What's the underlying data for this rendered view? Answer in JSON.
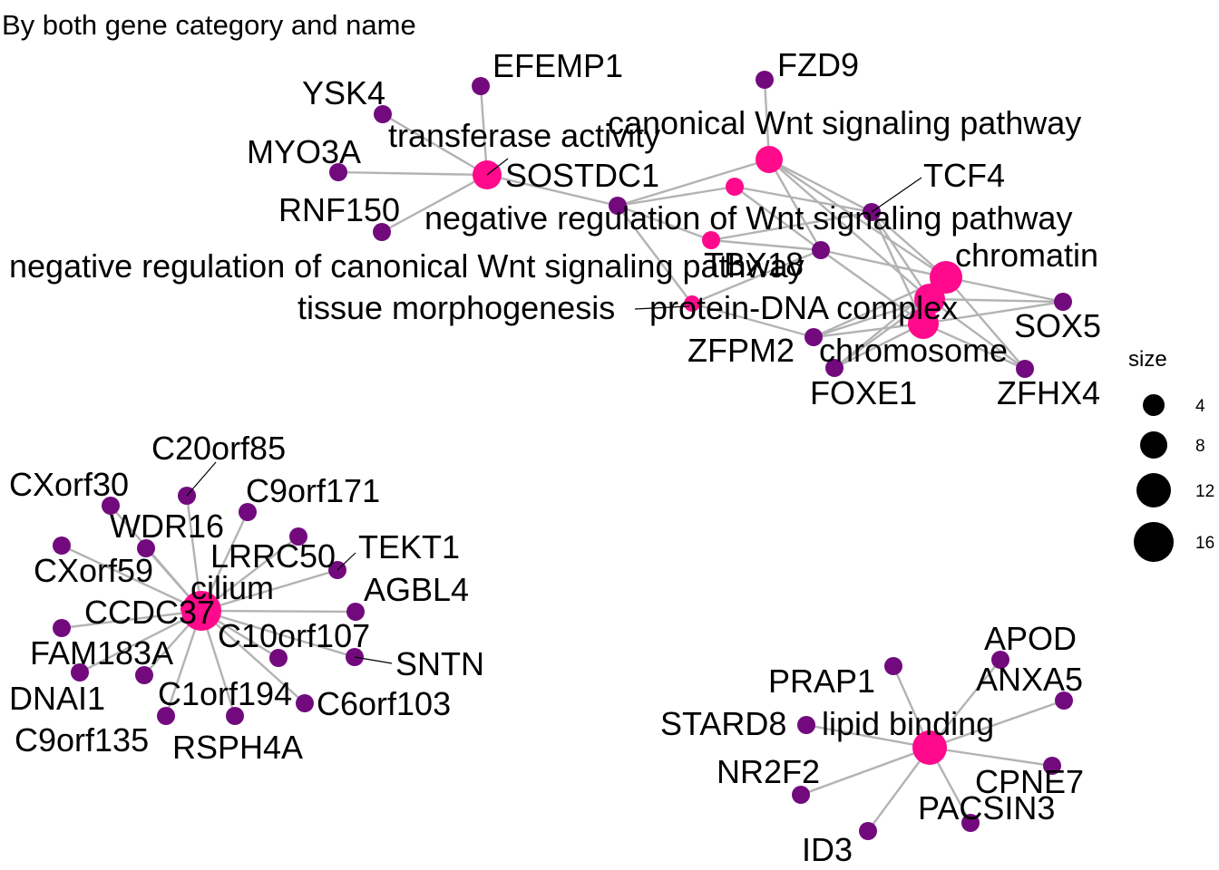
{
  "title": "By both gene category and name",
  "colors": {
    "category": "#ff0a8c",
    "gene": "#720a7e",
    "edge": "#b3b3b3",
    "legend_dot": "#000000"
  },
  "legend": {
    "title": "size",
    "entries": [
      "4",
      "8",
      "12",
      "16"
    ]
  },
  "categories": [
    {
      "id": "transferase",
      "label": "transferase activity",
      "size": 6
    },
    {
      "id": "canonical",
      "label": "canonical Wnt signaling pathway",
      "size": 6
    },
    {
      "id": "negreg",
      "label": "negative regulation of Wnt signaling pathway",
      "size": 4
    },
    {
      "id": "negcan",
      "label": "negative regulation of canonical Wnt signaling pathway",
      "size": 4
    },
    {
      "id": "tissue",
      "label": "tissue morphogenesis",
      "size": 3
    },
    {
      "id": "chromatin",
      "label": "chromatin",
      "size": 8
    },
    {
      "id": "pdna",
      "label": "protein-DNA complex",
      "size": 7
    },
    {
      "id": "chromosome",
      "label": "chromosome",
      "size": 9
    },
    {
      "id": "cilium",
      "label": "cilium",
      "size": 16
    },
    {
      "id": "ccdc37",
      "label": "CCDC37",
      "size": 3
    },
    {
      "id": "lipid",
      "label": "lipid binding",
      "size": 8
    }
  ],
  "genes": [
    "EFEMP1",
    "YSK4",
    "MYO3A",
    "RNF150",
    "SOSTDC1",
    "FZD9",
    "TCF4",
    "TBX18",
    "SOX5",
    "ZFPM2",
    "FOXE1",
    "ZFHX4",
    "C20orf85",
    "CXorf30",
    "C9orf171",
    "WDR16",
    "LRRC50",
    "TEKT1",
    "CXorf59",
    "AGBL4",
    "C10orf107",
    "SNTN",
    "FAM183A",
    "DNAI1",
    "C1orf194",
    "C6orf103",
    "C9orf135",
    "RSPH4A",
    "APOD",
    "PRAP1",
    "ANXA5",
    "STARD8",
    "NR2F2",
    "CPNE7",
    "PACSIN3",
    "ID3"
  ],
  "edges": [
    [
      "transferase",
      "EFEMP1"
    ],
    [
      "transferase",
      "YSK4"
    ],
    [
      "transferase",
      "MYO3A"
    ],
    [
      "transferase",
      "RNF150"
    ],
    [
      "transferase",
      "SOSTDC1"
    ],
    [
      "canonical",
      "FZD9"
    ],
    [
      "canonical",
      "SOSTDC1"
    ],
    [
      "canonical",
      "TCF4"
    ],
    [
      "canonical",
      "TBX18"
    ],
    [
      "canonical",
      "chromatin"
    ],
    [
      "canonical",
      "protein-DNA"
    ],
    [
      "negreg",
      "SOSTDC1"
    ],
    [
      "negreg",
      "TCF4"
    ],
    [
      "negreg",
      "TBX18"
    ],
    [
      "negcan",
      "SOSTDC1"
    ],
    [
      "negcan",
      "TCF4"
    ],
    [
      "negcan",
      "TBX18"
    ],
    [
      "tissue",
      "TBX18"
    ],
    [
      "tissue",
      "ZFPM2"
    ],
    [
      "tissue",
      "SOSTDC1"
    ],
    [
      "chromatin",
      "TCF4"
    ],
    [
      "chromatin",
      "SOX5"
    ],
    [
      "chromatin",
      "TBX18"
    ],
    [
      "chromatin",
      "ZFPM2"
    ],
    [
      "chromatin",
      "ZFHX4"
    ],
    [
      "chromatin",
      "FOXE1"
    ],
    [
      "pdna",
      "TCF4"
    ],
    [
      "pdna",
      "SOX5"
    ],
    [
      "pdna",
      "ZFPM2"
    ],
    [
      "pdna",
      "FOXE1"
    ],
    [
      "pdna",
      "ZFHX4"
    ],
    [
      "chromosome",
      "TCF4"
    ],
    [
      "chromosome",
      "SOX5"
    ],
    [
      "chromosome",
      "ZFPM2"
    ],
    [
      "chromosome",
      "FOXE1"
    ],
    [
      "chromosome",
      "ZFHX4"
    ],
    [
      "chromosome",
      "TBX18"
    ],
    [
      "cilium",
      "C20orf85"
    ],
    [
      "cilium",
      "CXorf30"
    ],
    [
      "cilium",
      "C9orf171"
    ],
    [
      "cilium",
      "WDR16"
    ],
    [
      "cilium",
      "LRRC50"
    ],
    [
      "cilium",
      "TEKT1"
    ],
    [
      "cilium",
      "CXorf59"
    ],
    [
      "cilium",
      "AGBL4"
    ],
    [
      "cilium",
      "C10orf107"
    ],
    [
      "cilium",
      "SNTN"
    ],
    [
      "cilium",
      "FAM183A"
    ],
    [
      "cilium",
      "DNAI1"
    ],
    [
      "cilium",
      "C1orf194"
    ],
    [
      "cilium",
      "C6orf103"
    ],
    [
      "cilium",
      "C9orf135"
    ],
    [
      "cilium",
      "RSPH4A"
    ],
    [
      "cilium",
      "CCDC37"
    ],
    [
      "lipid",
      "APOD"
    ],
    [
      "lipid",
      "PRAP1"
    ],
    [
      "lipid",
      "ANXA5"
    ],
    [
      "lipid",
      "STARD8"
    ],
    [
      "lipid",
      "NR2F2"
    ],
    [
      "lipid",
      "CPNE7"
    ],
    [
      "lipid",
      "PACSIN3"
    ],
    [
      "lipid",
      "ID3"
    ]
  ]
}
